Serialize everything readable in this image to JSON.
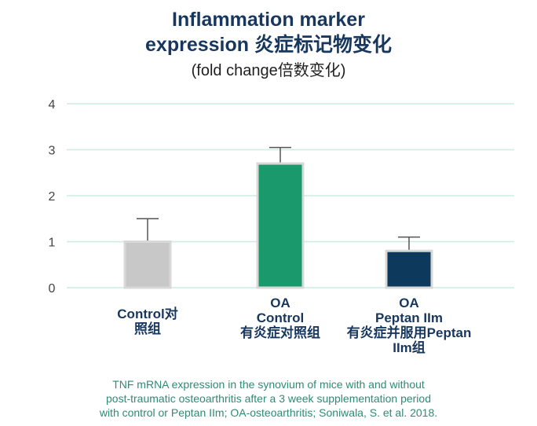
{
  "title": {
    "line1": "Inflammation marker",
    "line2": "expression 炎症标记物变化",
    "line3": "(fold change倍数变化)"
  },
  "chart_data": {
    "type": "bar",
    "categories": [
      [
        "Control对",
        "照组"
      ],
      [
        "OA",
        "Control",
        "有炎症对照组"
      ],
      [
        "OA",
        "Peptan IIm",
        "有炎症并服用Peptan",
        "IIm组"
      ]
    ],
    "values": [
      1.0,
      2.7,
      0.8
    ],
    "error_upper": [
      1.5,
      3.05,
      1.1
    ],
    "bar_colors": [
      "#c8c8c8",
      "#1a9a6c",
      "#0d3a5c"
    ],
    "ylim": [
      0,
      4
    ],
    "yticks": [
      "0",
      "1",
      "2",
      "3",
      "4"
    ],
    "grid": true,
    "grid_color": "#cdece4"
  },
  "caption": [
    "TNF mRNA expression in the synovium of mice with and without",
    "post-traumatic osteoarthritis after a 3 week supplementation period",
    "with control or Peptan IIm; OA-osteoarthritis; Soniwala, S. et al. 2018."
  ]
}
